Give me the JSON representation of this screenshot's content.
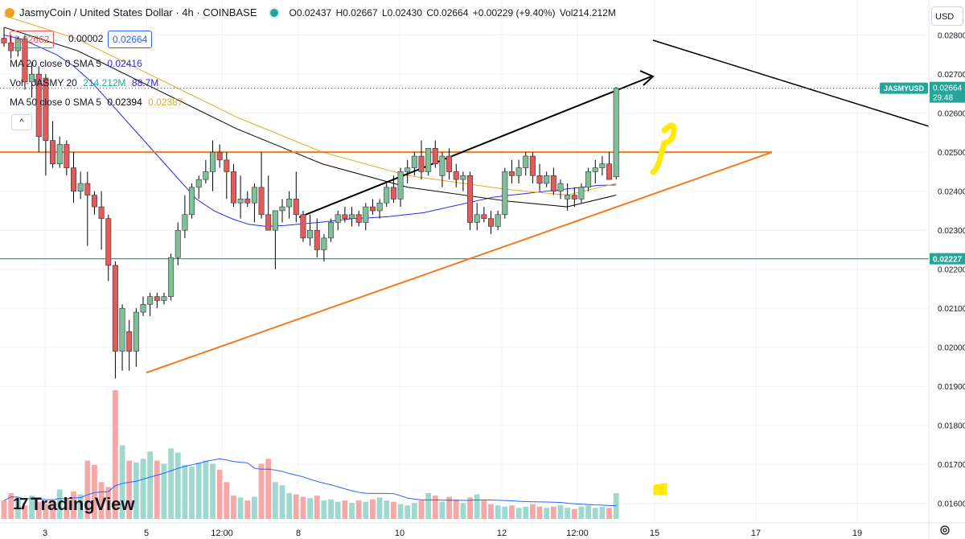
{
  "header": {
    "title": "JasmyCoin / United States Dollar · 4h · COINBASE",
    "open": "O0.02437",
    "high": "H0.02667",
    "low": "L0.02430",
    "close": "C0.02664",
    "change": "+0.00229 (+9.40%)",
    "volume": "Vol214.212M"
  },
  "price_boxes": {
    "bid": "0.02662",
    "spread": "0.00002",
    "ask": "0.02664"
  },
  "indicators": {
    "ma20": {
      "label": "MA 20 close 0 SMA 5",
      "value": "0.02416"
    },
    "vol": {
      "label": "Vol · JASMY 20",
      "value": "214.212M",
      "ma": "88.7M"
    },
    "ma50": {
      "label": "MA 50 close 0 SMA 5",
      "value1": "0.02394",
      "value2": "0.02387"
    }
  },
  "collapse_glyph": "^",
  "currency": "USD",
  "brand": {
    "mark": "17",
    "name": "TradingView"
  },
  "price_axis": {
    "ticks": [
      "0.02800",
      "0.02700",
      "0.02600",
      "0.02500",
      "0.02400",
      "0.02300",
      "0.02200",
      "0.02100",
      "0.02000",
      "0.01900",
      "0.01800",
      "0.01700",
      "0.01600"
    ],
    "symbol_tag": "JASMYUSD",
    "last_price": "0.02664",
    "countdown": "29:48",
    "line_tag": "0.02227"
  },
  "time_axis": {
    "labels": [
      "3",
      "5",
      "12:00",
      "8",
      "10",
      "12",
      "12:00",
      "15",
      "17",
      "19"
    ]
  },
  "colors": {
    "up": "#26a69a",
    "down": "#ef5350",
    "up_fill": "#7fbf9a",
    "down_fill": "#e05c5c",
    "ma20": "#2a2ae8",
    "ma50": "#e8a91f",
    "ma_black": "#000000",
    "orange": "#f37a1f",
    "teal": "#26a69a",
    "yellow": "#ffea00"
  },
  "chart_data": {
    "type": "candlestick",
    "timeframe": "4h",
    "ylim": [
      0.0155,
      0.0289
    ],
    "candles": [
      [
        0.02792,
        0.0282,
        0.0277,
        0.0278
      ],
      [
        0.0278,
        0.028,
        0.0274,
        0.0276
      ],
      [
        0.0276,
        0.02795,
        0.02745,
        0.0279
      ],
      [
        0.0279,
        0.028,
        0.0266,
        0.0268
      ],
      [
        0.0268,
        0.0273,
        0.0264,
        0.027
      ],
      [
        0.027,
        0.0272,
        0.025,
        0.0254
      ],
      [
        0.0269,
        0.027,
        0.0244,
        0.0253
      ],
      [
        0.0253,
        0.0258,
        0.0246,
        0.0247
      ],
      [
        0.0247,
        0.0254,
        0.0246,
        0.0252
      ],
      [
        0.0252,
        0.0253,
        0.0244,
        0.0246
      ],
      [
        0.0246,
        0.025,
        0.0237,
        0.024
      ],
      [
        0.024,
        0.0245,
        0.0238,
        0.0242
      ],
      [
        0.0242,
        0.0245,
        0.0226,
        0.0239
      ],
      [
        0.0239,
        0.024,
        0.0234,
        0.0236
      ],
      [
        0.0236,
        0.024,
        0.0225,
        0.0233
      ],
      [
        0.0233,
        0.0234,
        0.0217,
        0.0221
      ],
      [
        0.0221,
        0.0222,
        0.0192,
        0.0199
      ],
      [
        0.0199,
        0.0211,
        0.0194,
        0.021
      ],
      [
        0.0204,
        0.0207,
        0.0194,
        0.0199
      ],
      [
        0.0199,
        0.021,
        0.0195,
        0.0209
      ],
      [
        0.0209,
        0.0213,
        0.0208,
        0.0211
      ],
      [
        0.0211,
        0.0214,
        0.0208,
        0.0213
      ],
      [
        0.0213,
        0.0214,
        0.021,
        0.0212
      ],
      [
        0.0212,
        0.0214,
        0.0211,
        0.0213
      ],
      [
        0.0213,
        0.0224,
        0.0212,
        0.0223
      ],
      [
        0.0223,
        0.0232,
        0.0221,
        0.023
      ],
      [
        0.023,
        0.0239,
        0.0228,
        0.0234
      ],
      [
        0.0234,
        0.0242,
        0.0233,
        0.0241
      ],
      [
        0.0241,
        0.0244,
        0.0238,
        0.0243
      ],
      [
        0.0243,
        0.0248,
        0.0242,
        0.0245
      ],
      [
        0.0245,
        0.0253,
        0.024,
        0.025
      ],
      [
        0.025,
        0.0252,
        0.0246,
        0.0248
      ],
      [
        0.0248,
        0.025,
        0.0238,
        0.0245
      ],
      [
        0.0245,
        0.0247,
        0.0236,
        0.0237
      ],
      [
        0.0237,
        0.0244,
        0.0233,
        0.0238
      ],
      [
        0.0238,
        0.024,
        0.0236,
        0.0237
      ],
      [
        0.0237,
        0.0242,
        0.0232,
        0.0241
      ],
      [
        0.0241,
        0.025,
        0.0233,
        0.0234
      ],
      [
        0.0234,
        0.0244,
        0.023,
        0.023
      ],
      [
        0.023,
        0.0235,
        0.022,
        0.0235
      ],
      [
        0.0235,
        0.0238,
        0.0232,
        0.0236
      ],
      [
        0.0236,
        0.024,
        0.0233,
        0.0238
      ],
      [
        0.0238,
        0.0245,
        0.0232,
        0.0234
      ],
      [
        0.0234,
        0.0235,
        0.0227,
        0.0228
      ],
      [
        0.0228,
        0.0234,
        0.0226,
        0.023
      ],
      [
        0.023,
        0.0233,
        0.0223,
        0.0225
      ],
      [
        0.0225,
        0.0229,
        0.0222,
        0.0228
      ],
      [
        0.0228,
        0.0233,
        0.0227,
        0.0232
      ],
      [
        0.0232,
        0.0235,
        0.023,
        0.0234
      ],
      [
        0.0234,
        0.0236,
        0.0232,
        0.0233
      ],
      [
        0.0233,
        0.0236,
        0.0231,
        0.0234
      ],
      [
        0.0234,
        0.0235,
        0.0231,
        0.0232
      ],
      [
        0.0232,
        0.0237,
        0.023,
        0.0236
      ],
      [
        0.0236,
        0.0238,
        0.0234,
        0.0235
      ],
      [
        0.0235,
        0.0238,
        0.0233,
        0.0237
      ],
      [
        0.0237,
        0.0242,
        0.0236,
        0.0241
      ],
      [
        0.0241,
        0.0244,
        0.0237,
        0.0238
      ],
      [
        0.0238,
        0.0246,
        0.0236,
        0.0245
      ],
      [
        0.0245,
        0.0248,
        0.0242,
        0.0246
      ],
      [
        0.0246,
        0.025,
        0.0244,
        0.0249
      ],
      [
        0.0249,
        0.0253,
        0.0243,
        0.0245
      ],
      [
        0.0245,
        0.0251,
        0.0244,
        0.0251
      ],
      [
        0.0251,
        0.0253,
        0.0246,
        0.0247
      ],
      [
        0.0244,
        0.025,
        0.0241,
        0.0249
      ],
      [
        0.0249,
        0.0251,
        0.0243,
        0.0245
      ],
      [
        0.0245,
        0.0247,
        0.0241,
        0.0243
      ],
      [
        0.0243,
        0.0245,
        0.024,
        0.0244
      ],
      [
        0.0244,
        0.0245,
        0.023,
        0.0232
      ],
      [
        0.0232,
        0.0237,
        0.023,
        0.0234
      ],
      [
        0.0234,
        0.0236,
        0.0232,
        0.0233
      ],
      [
        0.0233,
        0.0235,
        0.0229,
        0.0231
      ],
      [
        0.0231,
        0.0235,
        0.023,
        0.0234
      ],
      [
        0.0234,
        0.0246,
        0.0233,
        0.0245
      ],
      [
        0.0245,
        0.0248,
        0.0242,
        0.0244
      ],
      [
        0.0244,
        0.0248,
        0.0242,
        0.0246
      ],
      [
        0.0246,
        0.025,
        0.0244,
        0.0249
      ],
      [
        0.0249,
        0.025,
        0.0242,
        0.0244
      ],
      [
        0.0244,
        0.0247,
        0.024,
        0.0242
      ],
      [
        0.0242,
        0.0245,
        0.0241,
        0.0244
      ],
      [
        0.0244,
        0.0246,
        0.0239,
        0.024
      ],
      [
        0.024,
        0.0243,
        0.0238,
        0.0242
      ],
      [
        0.0238,
        0.0242,
        0.0235,
        0.0239
      ],
      [
        0.0239,
        0.0241,
        0.0236,
        0.0238
      ],
      [
        0.0238,
        0.0242,
        0.0237,
        0.0241
      ],
      [
        0.0241,
        0.0246,
        0.024,
        0.0245
      ],
      [
        0.0245,
        0.0248,
        0.0242,
        0.0246
      ],
      [
        0.0246,
        0.0249,
        0.0244,
        0.0247
      ],
      [
        0.0247,
        0.025,
        0.0244,
        0.0243
      ],
      [
        0.02437,
        0.02667,
        0.0243,
        0.02664
      ]
    ],
    "volume": [
      30,
      42,
      35,
      22,
      38,
      28,
      25,
      30,
      48,
      33,
      45,
      40,
      95,
      88,
      60,
      52,
      210,
      120,
      95,
      92,
      98,
      110,
      95,
      90,
      115,
      108,
      88,
      85,
      92,
      95,
      90,
      80,
      60,
      38,
      35,
      30,
      36,
      90,
      98,
      60,
      55,
      42,
      40,
      36,
      34,
      38,
      30,
      32,
      28,
      30,
      26,
      30,
      28,
      32,
      35,
      30,
      28,
      24,
      22,
      26,
      30,
      42,
      38,
      28,
      36,
      32,
      26,
      35,
      40,
      30,
      24,
      22,
      20,
      22,
      18,
      20,
      24,
      20,
      18,
      20,
      22,
      18,
      16,
      20,
      22,
      18,
      20,
      18,
      42
    ],
    "ma20": [
      0.028,
      0.0279,
      0.0277,
      0.0275,
      0.0272,
      0.0268,
      0.0263,
      0.0258,
      0.0253,
      0.0248,
      0.0243,
      0.0238,
      0.0235,
      0.0233,
      0.02315,
      0.0231,
      0.02312,
      0.02316,
      0.0232,
      0.02325,
      0.0233,
      0.02332,
      0.02335,
      0.0234,
      0.02345,
      0.02355,
      0.02365,
      0.02375,
      0.02385,
      0.0239,
      0.02395,
      0.024,
      0.02405,
      0.0241,
      0.02415,
      0.02416
    ],
    "ma50": [
      0.0242,
      0.024,
      0.0239,
      0.02387
    ],
    "annotations": {
      "resistance": 0.025,
      "support_line": 0.02227,
      "trendline_from": 0.01935,
      "trendline_to": 0.025
    }
  }
}
